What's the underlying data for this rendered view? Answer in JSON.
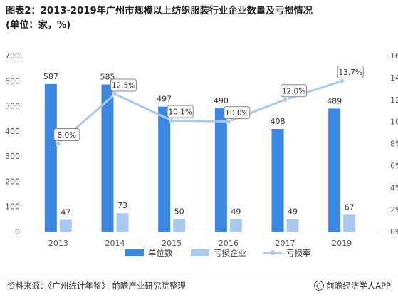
{
  "title": {
    "line1": "图表2：2013-2019年广州市规模以上纺织服装行业企业数量及亏损情况",
    "line2": "(单位：家，%)"
  },
  "source": "资料来源：《广州统计年鉴》 前瞻产业研究院整理",
  "brand": "前瞻经济学人APP",
  "colors": {
    "primary_bar": "#3a86e0",
    "secondary_bar": "#a9c9f1",
    "line": "#a9c9f1",
    "axis_text": "#555555"
  },
  "chart_data": {
    "type": "bar",
    "categories": [
      "2013",
      "2014",
      "2015",
      "2016",
      "2017",
      "2019"
    ],
    "series": [
      {
        "name": "单位数",
        "type": "bar",
        "axis": "left",
        "values": [
          587,
          585,
          497,
          490,
          408,
          489
        ]
      },
      {
        "name": "亏损企业",
        "type": "bar",
        "axis": "left",
        "values": [
          47,
          73,
          50,
          49,
          49,
          67
        ]
      },
      {
        "name": "亏损率",
        "type": "line",
        "axis": "right",
        "values": [
          8.0,
          12.5,
          10.1,
          10.0,
          12.0,
          13.7
        ],
        "labels": [
          "8.0%",
          "12.5%",
          "10.1%",
          "10.0%",
          "12.0%",
          "13.7%"
        ]
      }
    ],
    "y_left": {
      "ylim": [
        0,
        700
      ],
      "ticks": [
        "0",
        "100",
        "200",
        "300",
        "400",
        "500",
        "600",
        "700"
      ]
    },
    "y_right": {
      "ylim": [
        0,
        16
      ],
      "ticks": [
        "0%",
        "2%",
        "4%",
        "6%",
        "8%",
        "10%",
        "12%",
        "14%",
        "16%"
      ]
    },
    "grid": false,
    "legend_position": "bottom"
  }
}
